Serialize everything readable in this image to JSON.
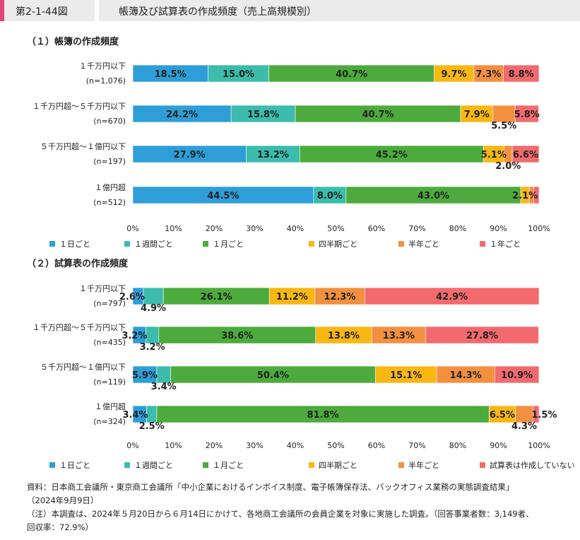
{
  "header": {
    "figure_no": "第2-1-44図",
    "title": "帳簿及び試算表の作成頻度（売上高規模別）"
  },
  "colors": [
    "#2e9ed8",
    "#3bbcad",
    "#4cab3c",
    "#f9b712",
    "#f39040",
    "#f26a6e"
  ],
  "chart_data": [
    {
      "type": "bar",
      "orientation": "horizontal-stacked-100",
      "title": "（１）帳簿の作成頻度",
      "categories": [
        {
          "label": "１千万円以下",
          "n": "(n=1,076)"
        },
        {
          "label": "１千万円超～５千万円以下",
          "n": "(n=670)"
        },
        {
          "label": "５千万円超～１億円以下",
          "n": "(n=197)"
        },
        {
          "label": "１億円超",
          "n": "(n=512)"
        }
      ],
      "series": [
        {
          "name": "１日ごと",
          "values": [
            18.5,
            24.2,
            27.9,
            44.5
          ]
        },
        {
          "name": "１週間ごと",
          "values": [
            15.0,
            15.8,
            13.2,
            8.0
          ]
        },
        {
          "name": "１月ごと",
          "values": [
            40.7,
            40.7,
            45.2,
            43.0
          ]
        },
        {
          "name": "四半期ごと",
          "values": [
            9.7,
            7.9,
            5.1,
            2.1
          ]
        },
        {
          "name": "半年ごと",
          "values": [
            7.3,
            5.5,
            2.0,
            1.1
          ]
        },
        {
          "name": "１年ごと",
          "values": [
            8.8,
            5.8,
            6.6,
            1.3
          ]
        }
      ],
      "labels": [
        [
          {
            "s": 0,
            "text": "18.5%"
          },
          {
            "s": 1,
            "text": "15.0%"
          },
          {
            "s": 2,
            "text": "40.7%"
          },
          {
            "s": 3,
            "text": "9.7%"
          },
          {
            "s": 4,
            "text": "7.3%"
          },
          {
            "s": 5,
            "text": "8.8%"
          }
        ],
        [
          {
            "s": 0,
            "text": "24.2%"
          },
          {
            "s": 1,
            "text": "15.8%"
          },
          {
            "s": 2,
            "text": "40.7%"
          },
          {
            "s": 3,
            "text": "7.9%"
          },
          {
            "s": 4,
            "text": "5.5%",
            "below": true
          },
          {
            "s": 5,
            "text": "5.8%"
          }
        ],
        [
          {
            "s": 0,
            "text": "27.9%"
          },
          {
            "s": 1,
            "text": "13.2%"
          },
          {
            "s": 2,
            "text": "45.2%"
          },
          {
            "s": 3,
            "text": "5.1%"
          },
          {
            "s": 4,
            "text": "2.0%",
            "below": true
          },
          {
            "s": 5,
            "text": "6.6%"
          }
        ],
        [
          {
            "s": 0,
            "text": "44.5%"
          },
          {
            "s": 1,
            "text": "8.0%"
          },
          {
            "s": 2,
            "text": "43.0%"
          },
          {
            "s": 3,
            "text": "2.1%"
          }
        ]
      ],
      "x_ticks": [
        "0%",
        "10%",
        "20%",
        "30%",
        "40%",
        "50%",
        "60%",
        "70%",
        "80%",
        "90%",
        "100%"
      ],
      "xlim": [
        0,
        100
      ],
      "legend": [
        "１日ごと",
        "１週間ごと",
        "１月ごと",
        "四半期ごと",
        "半年ごと",
        "１年ごと"
      ]
    },
    {
      "type": "bar",
      "orientation": "horizontal-stacked-100",
      "title": "（２）試算表の作成頻度",
      "categories": [
        {
          "label": "１千万円以下",
          "n": "(n=797)"
        },
        {
          "label": "１千万円超～５千万円以下",
          "n": "(n=435)"
        },
        {
          "label": "５千万円超～１億円以下",
          "n": "(n=119)"
        },
        {
          "label": "１億円超",
          "n": "(n=324)"
        }
      ],
      "series": [
        {
          "name": "１日ごと",
          "values": [
            2.6,
            3.2,
            5.9,
            3.4
          ]
        },
        {
          "name": "１週間ごと",
          "values": [
            4.9,
            3.2,
            3.4,
            2.5
          ]
        },
        {
          "name": "１月ごと",
          "values": [
            26.1,
            38.6,
            50.4,
            81.8
          ]
        },
        {
          "name": "四半期ごと",
          "values": [
            11.2,
            13.8,
            15.1,
            6.5
          ]
        },
        {
          "name": "半年ごと",
          "values": [
            12.3,
            13.3,
            14.3,
            4.3
          ]
        },
        {
          "name": "試算表は作成していない",
          "values": [
            42.9,
            27.8,
            10.9,
            1.5
          ]
        }
      ],
      "labels": [
        [
          {
            "s": 0,
            "text": "2.6%",
            "left": true
          },
          {
            "s": 1,
            "text": "4.9%",
            "below": true
          },
          {
            "s": 2,
            "text": "26.1%"
          },
          {
            "s": 3,
            "text": "11.2%"
          },
          {
            "s": 4,
            "text": "12.3%"
          },
          {
            "s": 5,
            "text": "42.9%"
          }
        ],
        [
          {
            "s": 0,
            "text": "3.2%",
            "left": true
          },
          {
            "s": 1,
            "text": "3.2%",
            "below": true
          },
          {
            "s": 2,
            "text": "38.6%"
          },
          {
            "s": 3,
            "text": "13.8%"
          },
          {
            "s": 4,
            "text": "13.3%"
          },
          {
            "s": 5,
            "text": "27.8%"
          }
        ],
        [
          {
            "s": 0,
            "text": "5.9%"
          },
          {
            "s": 1,
            "text": "3.4%",
            "below": true
          },
          {
            "s": 2,
            "text": "50.4%"
          },
          {
            "s": 3,
            "text": "15.1%"
          },
          {
            "s": 4,
            "text": "14.3%"
          },
          {
            "s": 5,
            "text": "10.9%"
          }
        ],
        [
          {
            "s": 0,
            "text": "3.4%",
            "left": true
          },
          {
            "s": 1,
            "text": "2.5%",
            "below": true
          },
          {
            "s": 2,
            "text": "81.8%"
          },
          {
            "s": 3,
            "text": "6.5%"
          },
          {
            "s": 4,
            "text": "4.3%",
            "below": true
          },
          {
            "s": 5,
            "text": "1.5%",
            "right": true
          }
        ]
      ],
      "x_ticks": [
        "0%",
        "10%",
        "20%",
        "30%",
        "40%",
        "50%",
        "60%",
        "70%",
        "80%",
        "90%",
        "100%"
      ],
      "xlim": [
        0,
        100
      ],
      "legend": [
        "１日ごと",
        "１週間ごと",
        "１月ごと",
        "四半期ごと",
        "半年ごと",
        "試算表は作成していない"
      ]
    }
  ],
  "notes": {
    "source_line1": "資料：日本商工会議所・東京商工会議所「中小企業におけるインボイス制度、電子帳簿保存法、バックオフィス業務の実態調査結果」",
    "source_line2": "（2024年9月9日）",
    "note_line1": "（注）本調査は、2024年５月20日から６月14日にかけて、各地商工会議所の会員企業を対象に実施した調査。（回答事業者数：3,149者、",
    "note_line2": "回収率：72.9%）"
  }
}
